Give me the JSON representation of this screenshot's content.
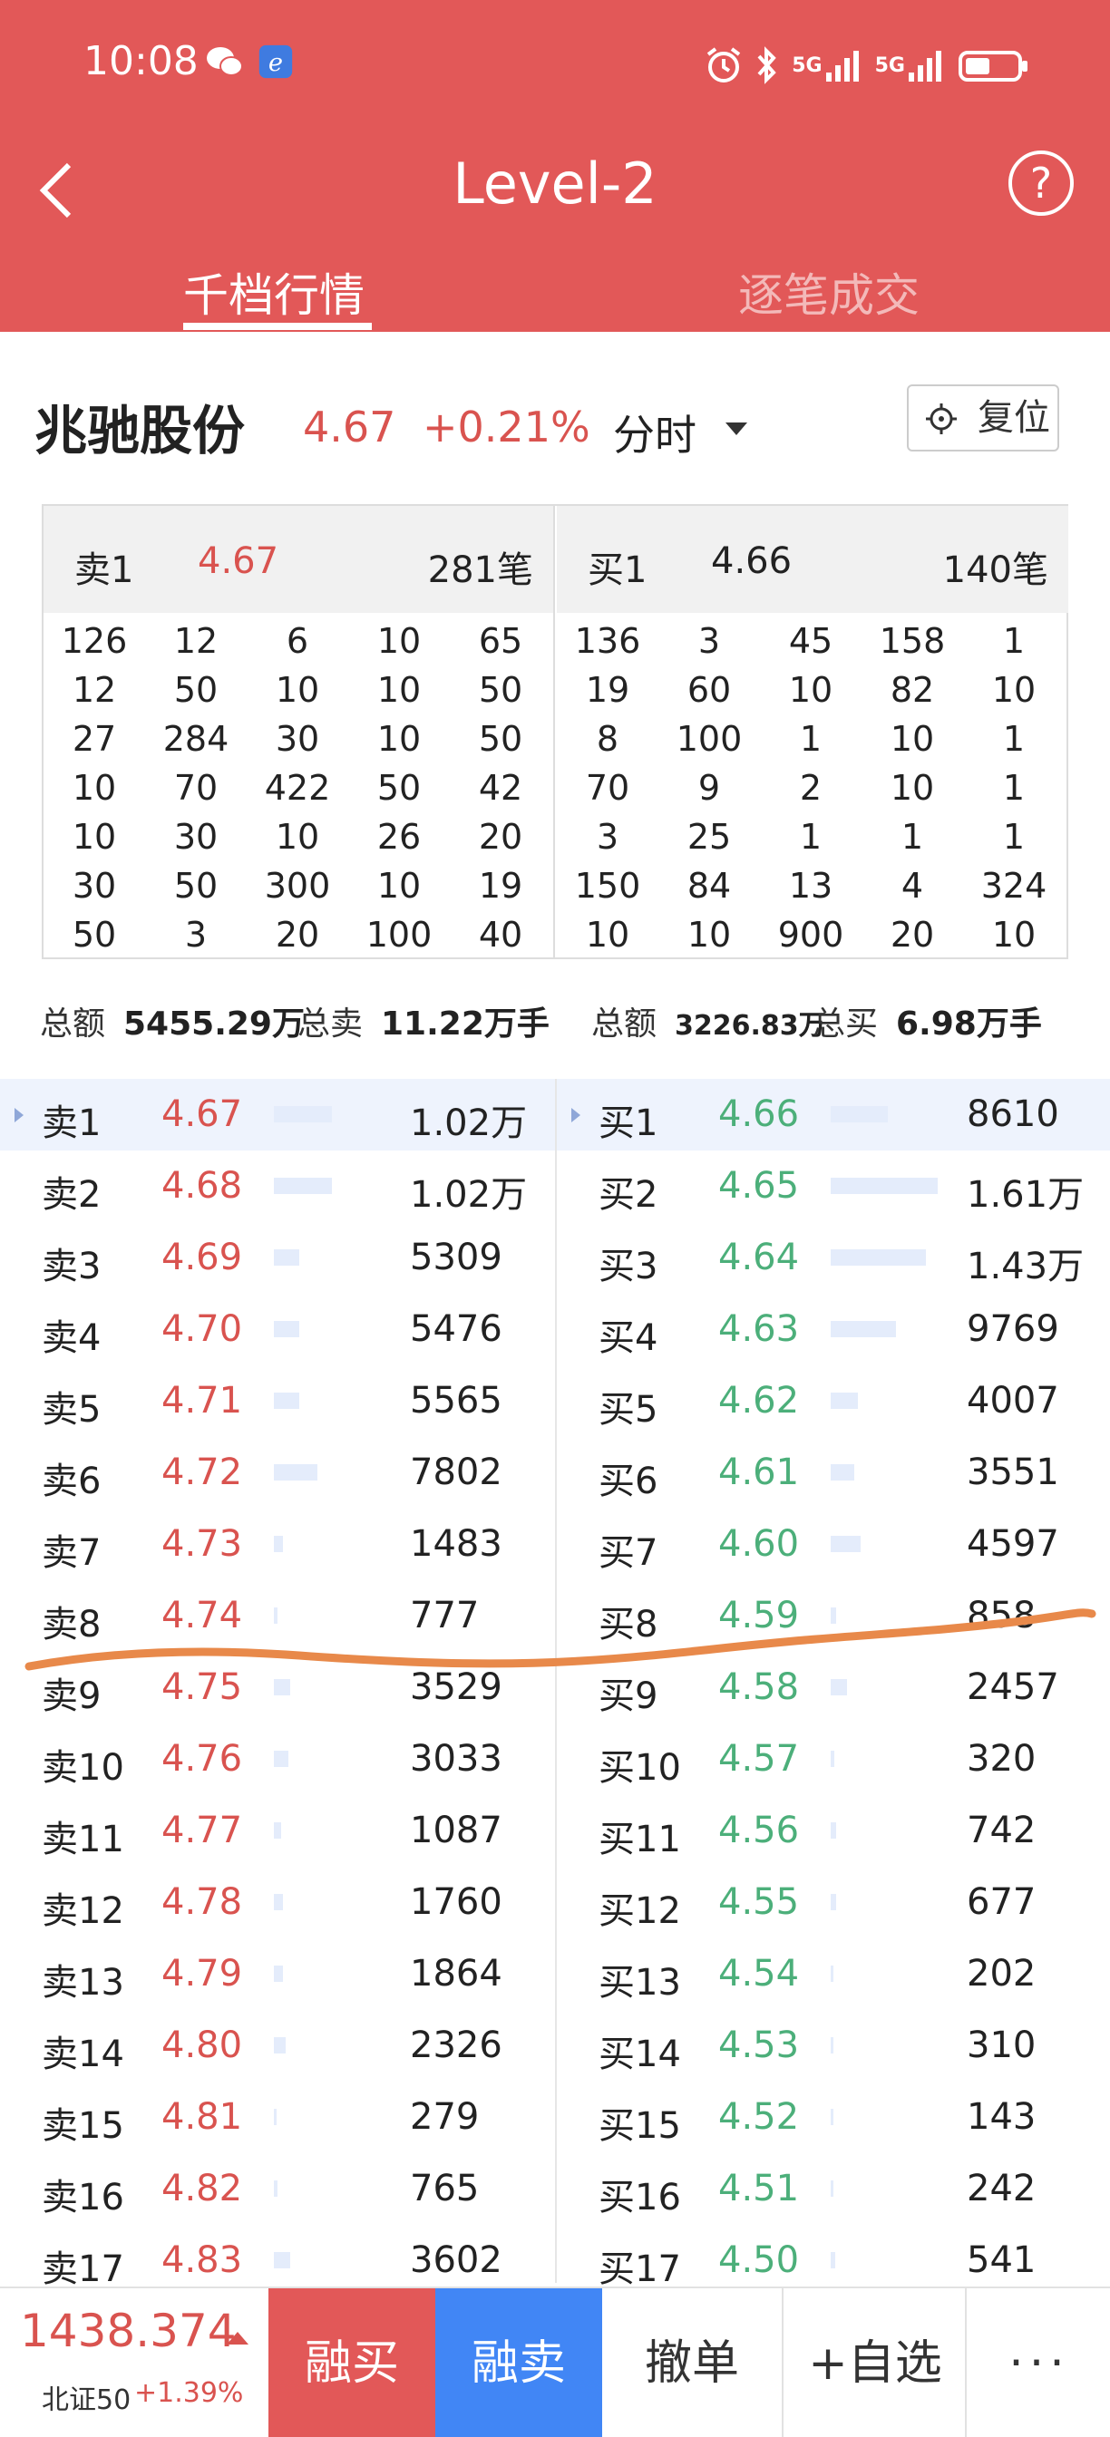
{
  "status": {
    "time": "10:08",
    "signal1": "5G",
    "signal2": "5G"
  },
  "header": {
    "title": "Level-2",
    "help": "?",
    "tabs": [
      "千档行情",
      "逐笔成交"
    ]
  },
  "stock": {
    "name": "兆驰股份",
    "price": "4.67",
    "change": "+0.21%",
    "mode": "分时",
    "reset_label": "复位"
  },
  "depth_panel": {
    "sell": {
      "label": "卖1",
      "price": "4.67",
      "count": "281笔",
      "rows": [
        [
          "126",
          "12",
          "6",
          "10",
          "65"
        ],
        [
          "12",
          "50",
          "10",
          "10",
          "50"
        ],
        [
          "27",
          "284",
          "30",
          "10",
          "50"
        ],
        [
          "10",
          "70",
          "422",
          "50",
          "42"
        ],
        [
          "10",
          "30",
          "10",
          "26",
          "20"
        ],
        [
          "30",
          "50",
          "300",
          "10",
          "19"
        ],
        [
          "50",
          "3",
          "20",
          "100",
          "40"
        ]
      ]
    },
    "buy": {
      "label": "买1",
      "price": "4.66",
      "count": "140笔",
      "rows": [
        [
          "136",
          "3",
          "45",
          "158",
          "1"
        ],
        [
          "19",
          "60",
          "10",
          "82",
          "10"
        ],
        [
          "8",
          "100",
          "1",
          "10",
          "1"
        ],
        [
          "70",
          "9",
          "2",
          "10",
          "1"
        ],
        [
          "3",
          "25",
          "1",
          "1",
          "1"
        ],
        [
          "150",
          "84",
          "13",
          "4",
          "324"
        ],
        [
          "10",
          "10",
          "900",
          "20",
          "10"
        ]
      ]
    }
  },
  "totals": {
    "sell_amount_label": "总额",
    "sell_amount": "5455.29万",
    "sell_total_label": "总卖",
    "sell_total": "11.22万手",
    "buy_amount_label": "总额",
    "buy_amount": "3226.83万",
    "buy_total_label": "总买",
    "buy_total": "6.98万手"
  },
  "order_book": {
    "sell": [
      {
        "name": "卖1",
        "price": "4.67",
        "volume": "1.02万",
        "level": 0.8
      },
      {
        "name": "卖2",
        "price": "4.68",
        "volume": "1.02万",
        "level": 0.8
      },
      {
        "name": "卖3",
        "price": "4.69",
        "volume": "5309",
        "level": 0.35
      },
      {
        "name": "卖4",
        "price": "4.70",
        "volume": "5476",
        "level": 0.35
      },
      {
        "name": "卖5",
        "price": "4.71",
        "volume": "5565",
        "level": 0.35
      },
      {
        "name": "卖6",
        "price": "4.72",
        "volume": "7802",
        "level": 0.6
      },
      {
        "name": "卖7",
        "price": "4.73",
        "volume": "1483",
        "level": 0.12
      },
      {
        "name": "卖8",
        "price": "4.74",
        "volume": "777",
        "level": 0.05
      },
      {
        "name": "卖9",
        "price": "4.75",
        "volume": "3529",
        "level": 0.22
      },
      {
        "name": "卖10",
        "price": "4.76",
        "volume": "3033",
        "level": 0.2
      },
      {
        "name": "卖11",
        "price": "4.77",
        "volume": "1087",
        "level": 0.1
      },
      {
        "name": "卖12",
        "price": "4.78",
        "volume": "1760",
        "level": 0.13
      },
      {
        "name": "卖13",
        "price": "4.79",
        "volume": "1864",
        "level": 0.13
      },
      {
        "name": "卖14",
        "price": "4.80",
        "volume": "2326",
        "level": 0.16
      },
      {
        "name": "卖15",
        "price": "4.81",
        "volume": "279",
        "level": 0.03
      },
      {
        "name": "卖16",
        "price": "4.82",
        "volume": "765",
        "level": 0.05
      },
      {
        "name": "卖17",
        "price": "4.83",
        "volume": "3602",
        "level": 0.22
      }
    ],
    "buy": [
      {
        "name": "买1",
        "price": "4.66",
        "volume": "8610",
        "level": 0.53
      },
      {
        "name": "买2",
        "price": "4.65",
        "volume": "1.61万",
        "level": 1.0
      },
      {
        "name": "买3",
        "price": "4.64",
        "volume": "1.43万",
        "level": 0.89
      },
      {
        "name": "买4",
        "price": "4.63",
        "volume": "9769",
        "level": 0.61
      },
      {
        "name": "买5",
        "price": "4.62",
        "volume": "4007",
        "level": 0.25
      },
      {
        "name": "买6",
        "price": "4.61",
        "volume": "3551",
        "level": 0.22
      },
      {
        "name": "买7",
        "price": "4.60",
        "volume": "4597",
        "level": 0.28
      },
      {
        "name": "买8",
        "price": "4.59",
        "volume": "858",
        "level": 0.05
      },
      {
        "name": "买9",
        "price": "4.58",
        "volume": "2457",
        "level": 0.15
      },
      {
        "name": "买10",
        "price": "4.57",
        "volume": "320",
        "level": 0.03
      },
      {
        "name": "买11",
        "price": "4.56",
        "volume": "742",
        "level": 0.05
      },
      {
        "name": "买12",
        "price": "4.55",
        "volume": "677",
        "level": 0.05
      },
      {
        "name": "买13",
        "price": "4.54",
        "volume": "202",
        "level": 0.02
      },
      {
        "name": "买14",
        "price": "4.53",
        "volume": "310",
        "level": 0.02
      },
      {
        "name": "买15",
        "price": "4.52",
        "volume": "143",
        "level": 0.01
      },
      {
        "name": "买16",
        "price": "4.51",
        "volume": "242",
        "level": 0.02
      },
      {
        "name": "买17",
        "price": "4.50",
        "volume": "541",
        "level": 0.04
      }
    ]
  },
  "bottom_bar": {
    "index_value": "1438.374",
    "index_name": "北证50",
    "index_change": "+1.39%",
    "btn_margin_buy": "融买",
    "btn_margin_sell": "融卖",
    "btn_cancel": "撤单",
    "btn_watchlist": "+自选",
    "btn_more": "···"
  },
  "colors": {
    "header": "#e25858",
    "up": "#d9534f",
    "down": "#4caf7a",
    "depth_bar": "#e4ecfb",
    "highlight_row": "#eef3fd",
    "annotation": "#e8894a",
    "sell_button": "#4186f5"
  },
  "icons": [
    "back-arrow-icon",
    "help-icon",
    "caret-down-icon",
    "crosshair-icon",
    "wechat-icon",
    "browser-icon",
    "alarm-icon",
    "bluetooth-icon",
    "signal-icon",
    "battery-icon",
    "up-arrow-icon"
  ]
}
